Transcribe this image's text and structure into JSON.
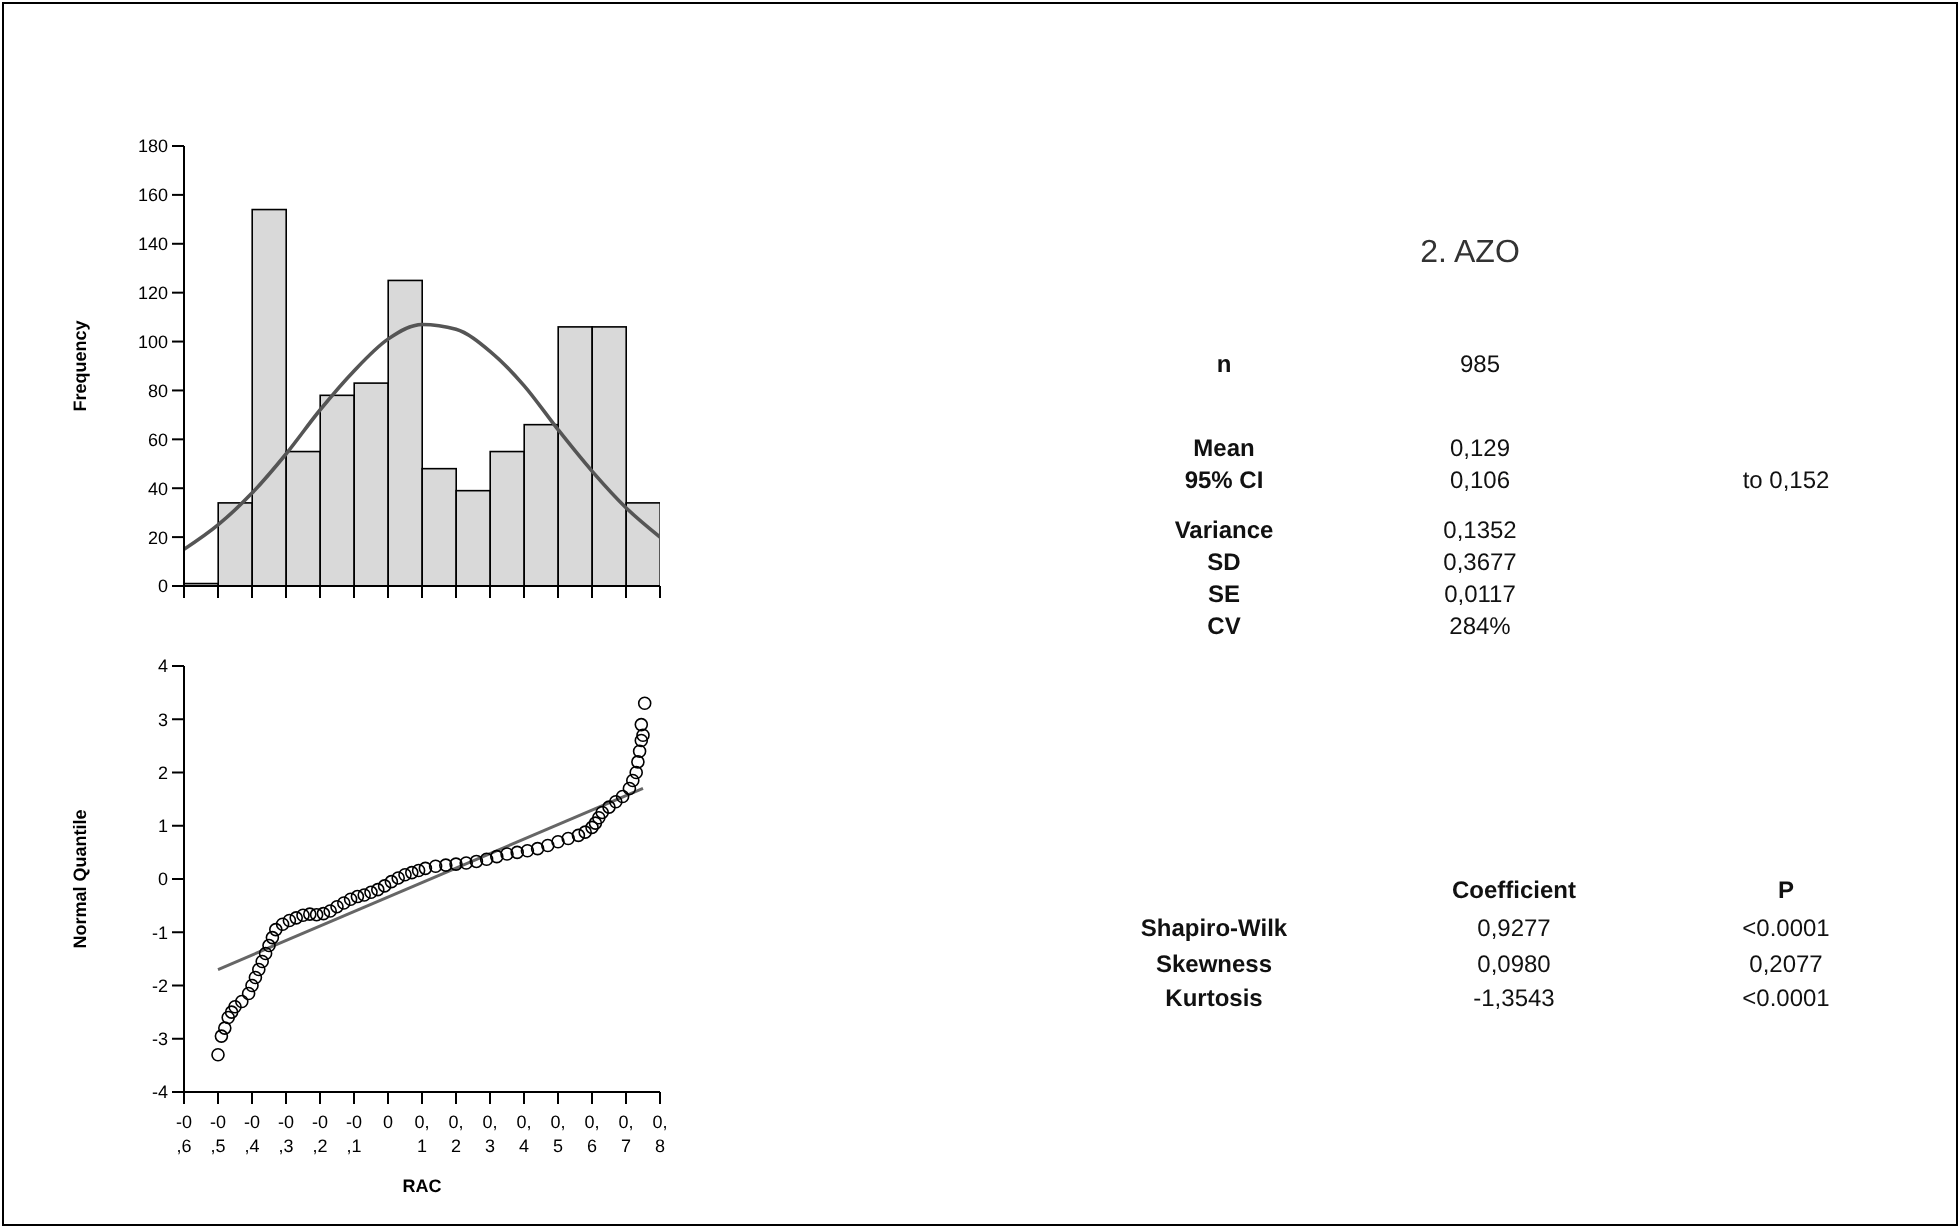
{
  "chart_data": [
    {
      "type": "histogram",
      "ylabel": "Frequency",
      "bins": [
        -0.6,
        -0.5,
        -0.4,
        -0.3,
        -0.2,
        -0.1,
        0,
        0.1,
        0.2,
        0.3,
        0.4,
        0.5,
        0.6,
        0.7,
        0.8
      ],
      "values": [
        1,
        34,
        154,
        55,
        78,
        83,
        125,
        48,
        39,
        55,
        66,
        106,
        106,
        34
      ],
      "color": "#d9d9d9",
      "series": [
        {
          "type": "line",
          "color": "#555555",
          "x": [
            -0.6,
            -0.5,
            -0.4,
            -0.3,
            -0.2,
            -0.1,
            0,
            0.1,
            0.2,
            0.3,
            0.4,
            0.5,
            0.6,
            0.7,
            0.8
          ],
          "values": [
            15,
            25,
            38,
            54,
            72,
            88,
            101,
            107,
            105,
            96,
            82,
            64,
            47,
            32,
            20
          ]
        }
      ],
      "xlim": [
        -0.6,
        0.8
      ],
      "ylim": [
        0,
        180
      ],
      "yticks": [
        0,
        20,
        40,
        60,
        80,
        100,
        120,
        140,
        160,
        180
      ],
      "tick_labels": "y"
    },
    {
      "type": "scatter",
      "xlabel": "RAC",
      "ylabel": "Normal Quantile",
      "series": [
        {
          "type": "scatter",
          "marker": "circle",
          "color": "#000000",
          "x": [
            -0.5,
            -0.49,
            -0.48,
            -0.47,
            -0.46,
            -0.45,
            -0.43,
            -0.41,
            -0.4,
            -0.39,
            -0.38,
            -0.37,
            -0.36,
            -0.35,
            -0.34,
            -0.33,
            -0.31,
            -0.29,
            -0.27,
            -0.25,
            -0.23,
            -0.21,
            -0.19,
            -0.17,
            -0.15,
            -0.13,
            -0.11,
            -0.09,
            -0.07,
            -0.05,
            -0.03,
            -0.01,
            0.01,
            0.03,
            0.05,
            0.07,
            0.09,
            0.11,
            0.14,
            0.17,
            0.2,
            0.23,
            0.26,
            0.29,
            0.32,
            0.35,
            0.38,
            0.41,
            0.44,
            0.47,
            0.5,
            0.53,
            0.56,
            0.58,
            0.6,
            0.61,
            0.62,
            0.63,
            0.65,
            0.67,
            0.69,
            0.71,
            0.72,
            0.73,
            0.735,
            0.74,
            0.745,
            0.75,
            0.745,
            0.755
          ],
          "values": [
            -3.3,
            -2.95,
            -2.8,
            -2.6,
            -2.5,
            -2.4,
            -2.3,
            -2.15,
            -2,
            -1.85,
            -1.7,
            -1.55,
            -1.4,
            -1.25,
            -1.1,
            -0.95,
            -0.85,
            -0.78,
            -0.73,
            -0.68,
            -0.66,
            -0.67,
            -0.65,
            -0.6,
            -0.52,
            -0.45,
            -0.38,
            -0.33,
            -0.3,
            -0.25,
            -0.2,
            -0.13,
            -0.05,
            0.02,
            0.08,
            0.12,
            0.16,
            0.2,
            0.24,
            0.26,
            0.28,
            0.3,
            0.33,
            0.37,
            0.42,
            0.47,
            0.5,
            0.53,
            0.57,
            0.63,
            0.7,
            0.76,
            0.82,
            0.88,
            0.97,
            1.05,
            1.15,
            1.25,
            1.35,
            1.45,
            1.55,
            1.7,
            1.85,
            2,
            2.2,
            2.4,
            2.6,
            2.7,
            2.9,
            3.3
          ]
        },
        {
          "type": "line",
          "marker": "none",
          "color": "#666666",
          "x": [
            -0.5,
            0.75
          ],
          "values": [
            -1.7,
            1.7
          ]
        }
      ],
      "xlim": [
        -0.6,
        0.8
      ],
      "xticks": [
        {
          "value": -0.6,
          "label": "-0,6"
        },
        {
          "value": -0.5,
          "label": "-0,5"
        },
        {
          "value": -0.4,
          "label": "-0,4"
        },
        {
          "value": -0.3,
          "label": "-0,3"
        },
        {
          "value": -0.2,
          "label": "-0,2"
        },
        {
          "value": -0.1,
          "label": "-0,1"
        },
        0,
        {
          "value": 0.1,
          "label": "0,1"
        },
        {
          "value": 0.2,
          "label": "0,2"
        },
        {
          "value": 0.3,
          "label": "0,3"
        },
        {
          "value": 0.4,
          "label": "0,4"
        },
        {
          "value": 0.5,
          "label": "0,5"
        },
        {
          "value": 0.6,
          "label": "0,6"
        },
        {
          "value": 0.7,
          "label": "0,7"
        },
        {
          "value": 0.8,
          "label": "0,8"
        }
      ],
      "ylim": [
        -4,
        4
      ],
      "yticks": [
        -4,
        -3,
        -2,
        -1,
        0,
        1,
        2,
        3,
        4
      ]
    },
    {
      "type": "other",
      "title": "2. AZO",
      "annotations": [
        "n",
        "985",
        "Mean",
        "0,129",
        "95% CI",
        "0,106",
        "to 0,152",
        "Variance",
        "0,1352",
        "SD",
        "0,3677",
        "SE",
        "0,0117",
        "CV",
        "284%",
        "Coefficient",
        "P",
        "Shapiro-Wilk",
        "0,9277",
        "<0.0001",
        "Skewness",
        "0,0980",
        "0,2077",
        "Kurtosis",
        "-1,3543",
        "<0.0001"
      ]
    }
  ]
}
